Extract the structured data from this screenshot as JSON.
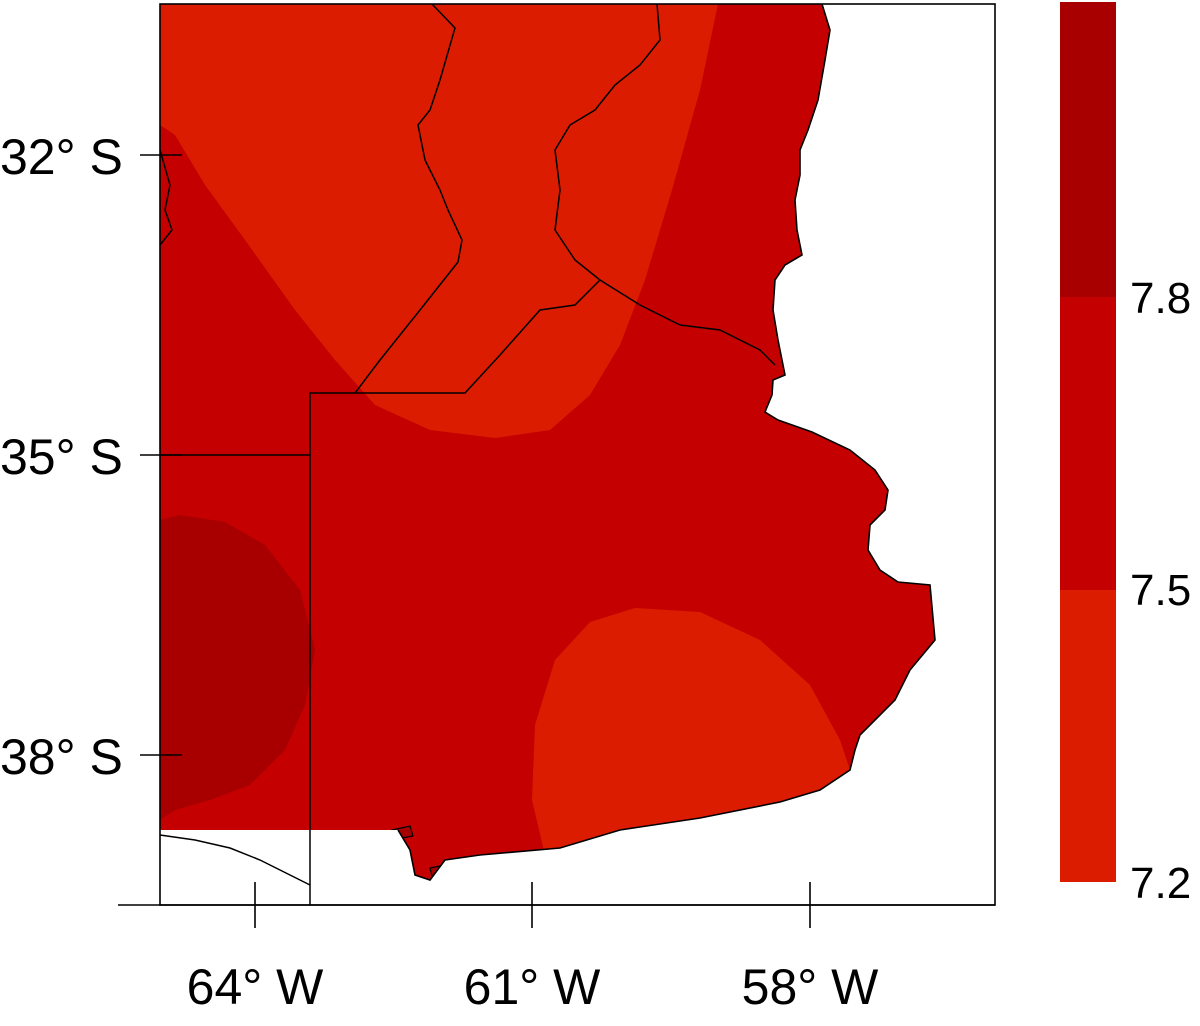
{
  "map": {
    "y_ticks": [
      {
        "label": "32° S",
        "lat": -32
      },
      {
        "label": "35° S",
        "lat": -35
      },
      {
        "label": "38° S",
        "lat": -38
      }
    ],
    "x_ticks": [
      {
        "label": "64° W",
        "lon": -64
      },
      {
        "label": "61° W",
        "lon": -61
      },
      {
        "label": "58° W",
        "lon": -58
      }
    ],
    "classes": [
      {
        "range": [
          7.2,
          7.5
        ],
        "color": "#dc1c00"
      },
      {
        "range": [
          7.5,
          7.8
        ],
        "color": "#c40000"
      },
      {
        "range": [
          7.8,
          8.1
        ],
        "color": "#a80000"
      }
    ],
    "background_color": "#ffffff",
    "boundary_color": "#000000"
  },
  "legend": {
    "tick_labels": [
      "7.8",
      "7.5",
      "7.2"
    ],
    "colors": [
      "#a80000",
      "#c40000",
      "#dc1c00"
    ]
  }
}
